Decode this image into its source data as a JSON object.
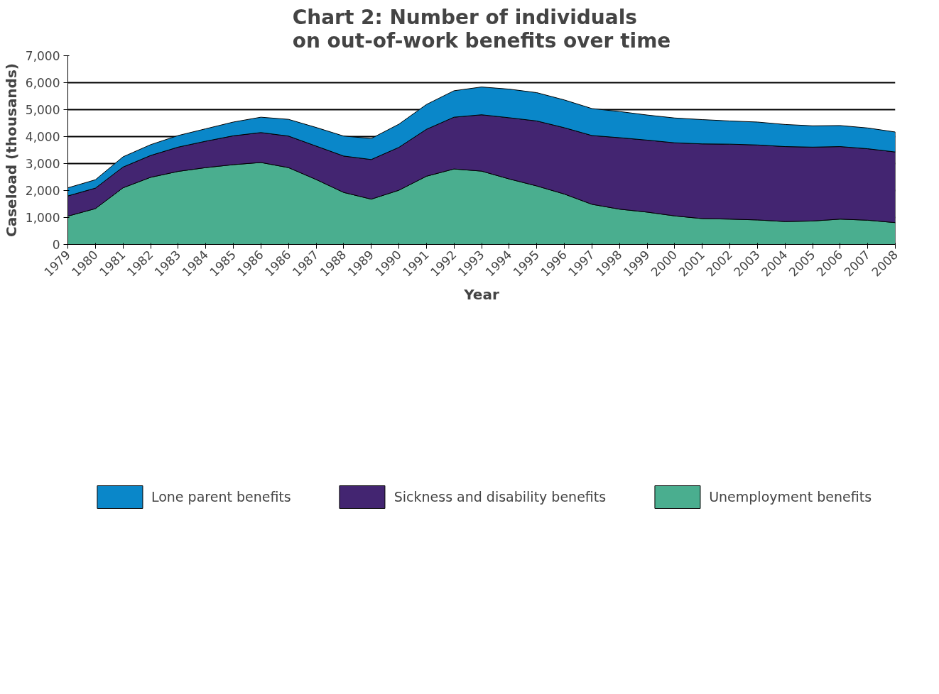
{
  "chart_data": {
    "type": "area",
    "title": "Chart 2: Number of individuals on out-of-work benefits over time",
    "xlabel": "Year",
    "ylabel": "Caseload (thousands)",
    "stacked": true,
    "grid": "y",
    "legend": "bottom",
    "categories": [
      "1979",
      "1980",
      "1981",
      "1982",
      "1983",
      "1984",
      "1985",
      "1986",
      "1986",
      "1987",
      "1988",
      "1989",
      "1990",
      "1991",
      "1992",
      "1993",
      "1994",
      "1995",
      "1996",
      "1997",
      "1998",
      "1999",
      "2000",
      "2001",
      "2002",
      "2003",
      "2004",
      "2005",
      "2006",
      "2007",
      "2008"
    ],
    "ylim": [
      0,
      7000
    ],
    "yticks": [
      0,
      {
        "value": 1000,
        "label": "1,000"
      },
      {
        "value": 2000,
        "label": "2,000"
      },
      {
        "value": 3000,
        "label": "3,000"
      },
      {
        "value": 4000,
        "label": "4,000"
      },
      {
        "value": 5000,
        "label": "5,000"
      },
      {
        "value": 6000,
        "label": "6,000"
      },
      {
        "value": 7000,
        "label": "7,000"
      }
    ],
    "series": [
      {
        "name": "Unemployment benefits",
        "color": "#4aae8f",
        "values": [
          1050,
          1330,
          2100,
          2490,
          2710,
          2850,
          2960,
          3040,
          2850,
          2410,
          1930,
          1680,
          2010,
          2530,
          2800,
          2720,
          2430,
          2170,
          1870,
          1490,
          1310,
          1200,
          1060,
          960,
          940,
          910,
          850,
          870,
          940,
          900,
          810
        ]
      },
      {
        "name": "Sickness and disability benefits",
        "color": "#432571",
        "values": [
          750,
          760,
          770,
          810,
          900,
          980,
          1070,
          1110,
          1170,
          1240,
          1350,
          1470,
          1590,
          1740,
          1920,
          2090,
          2270,
          2410,
          2460,
          2550,
          2650,
          2670,
          2710,
          2770,
          2780,
          2780,
          2780,
          2740,
          2690,
          2650,
          2620
        ]
      },
      {
        "name": "Lone parent benefits",
        "color": "#0a87c9",
        "values": [
          300,
          310,
          380,
          400,
          430,
          460,
          510,
          570,
          620,
          690,
          740,
          780,
          860,
          920,
          980,
          1030,
          1060,
          1050,
          1030,
          1000,
          970,
          930,
          920,
          900,
          860,
          850,
          820,
          790,
          780,
          770,
          740
        ]
      }
    ]
  }
}
